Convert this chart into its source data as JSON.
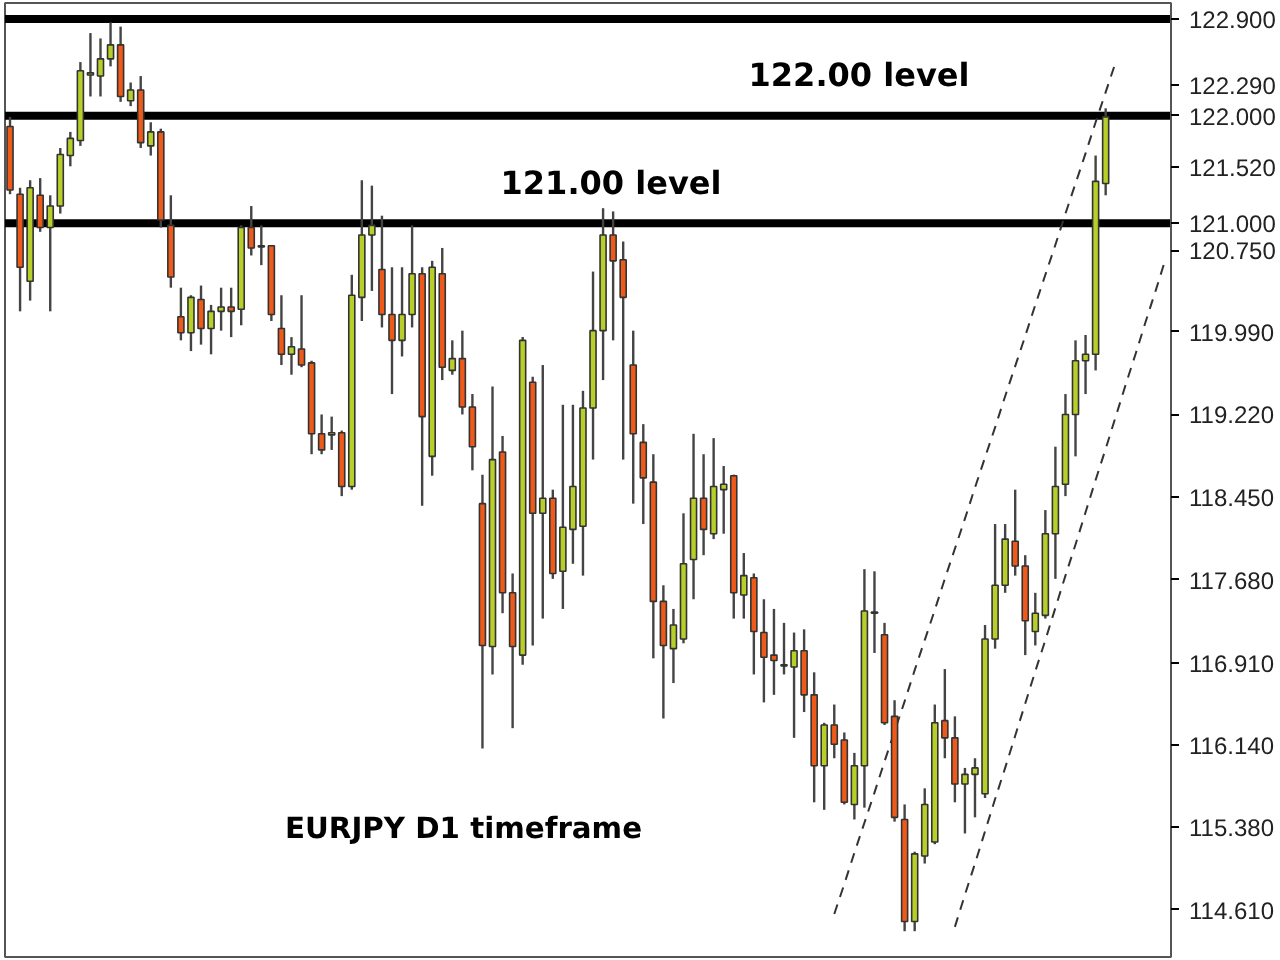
{
  "chart_data": {
    "type": "candlestick",
    "categories": [
      null,
      null,
      null,
      null,
      null,
      null,
      null,
      null,
      null,
      null,
      null,
      null,
      null,
      null,
      null,
      null,
      null,
      null,
      null,
      null,
      null,
      null,
      null,
      null,
      null,
      null,
      null,
      null,
      null,
      null,
      null,
      null,
      null,
      null,
      null,
      null,
      null,
      null,
      null,
      null,
      null,
      null,
      null,
      null,
      null,
      null,
      null,
      null,
      null,
      null,
      null,
      null,
      null,
      null,
      null,
      null,
      null,
      null,
      null,
      null,
      null,
      null,
      null,
      null,
      null,
      null,
      null,
      null,
      null,
      null,
      null,
      null,
      null,
      null,
      null,
      null,
      null,
      null,
      null,
      null,
      null,
      null,
      null,
      null,
      null,
      null,
      null,
      null,
      null,
      null,
      null,
      null,
      null,
      null,
      null,
      null,
      null,
      null,
      null,
      null,
      null,
      null,
      null,
      null,
      null,
      null,
      null,
      null,
      null,
      null,
      null,
      null,
      null,
      null,
      null,
      null
    ],
    "ohlc": [
      [
        121.9,
        121.99,
        121.27,
        121.31
      ],
      [
        121.27,
        121.33,
        120.18,
        120.59
      ],
      [
        120.46,
        121.4,
        120.28,
        121.33
      ],
      [
        121.26,
        121.42,
        120.92,
        120.96
      ],
      [
        120.96,
        121.26,
        120.18,
        121.16
      ],
      [
        121.16,
        121.7,
        121.09,
        121.64
      ],
      [
        121.63,
        121.85,
        121.53,
        121.79
      ],
      [
        121.77,
        122.5,
        121.72,
        122.42
      ],
      [
        122.38,
        122.77,
        122.18,
        122.4
      ],
      [
        122.37,
        122.72,
        122.18,
        122.53
      ],
      [
        122.53,
        122.87,
        122.46,
        122.66
      ],
      [
        122.66,
        122.83,
        122.13,
        122.18
      ],
      [
        122.14,
        122.31,
        122.09,
        122.24
      ],
      [
        122.24,
        122.37,
        121.7,
        121.75
      ],
      [
        121.72,
        121.94,
        121.63,
        121.85
      ],
      [
        121.85,
        121.88,
        120.96,
        121.03
      ],
      [
        120.98,
        121.26,
        120.4,
        120.5
      ],
      [
        120.13,
        120.4,
        119.91,
        119.98
      ],
      [
        119.98,
        120.33,
        119.81,
        120.31
      ],
      [
        120.29,
        120.42,
        119.87,
        120.02
      ],
      [
        120.02,
        120.24,
        119.78,
        120.18
      ],
      [
        120.18,
        120.4,
        120.0,
        120.22
      ],
      [
        120.22,
        120.4,
        119.94,
        120.18
      ],
      [
        120.2,
        120.98,
        120.05,
        120.96
      ],
      [
        120.96,
        121.16,
        120.7,
        120.77
      ],
      [
        120.79,
        120.98,
        120.61,
        120.78
      ],
      [
        120.79,
        120.79,
        120.09,
        120.15
      ],
      [
        120.02,
        120.33,
        119.68,
        119.78
      ],
      [
        119.78,
        119.94,
        119.59,
        119.85
      ],
      [
        119.83,
        120.33,
        119.66,
        119.68
      ],
      [
        119.7,
        119.72,
        118.85,
        119.04
      ],
      [
        119.04,
        119.22,
        118.85,
        118.89
      ],
      [
        119.03,
        119.2,
        118.89,
        119.05
      ],
      [
        119.05,
        119.07,
        118.46,
        118.55
      ],
      [
        118.55,
        120.52,
        118.52,
        120.33
      ],
      [
        120.31,
        121.4,
        120.09,
        120.89
      ],
      [
        120.89,
        121.35,
        120.37,
        120.98
      ],
      [
        120.57,
        121.07,
        120.03,
        120.15
      ],
      [
        120.15,
        120.59,
        119.41,
        119.91
      ],
      [
        119.91,
        120.59,
        119.76,
        120.15
      ],
      [
        120.15,
        120.98,
        120.03,
        120.53
      ],
      [
        120.53,
        120.59,
        118.37,
        119.2
      ],
      [
        118.83,
        120.65,
        118.65,
        120.59
      ],
      [
        120.53,
        120.77,
        119.54,
        119.66
      ],
      [
        119.63,
        119.91,
        119.59,
        119.74
      ],
      [
        119.74,
        120.0,
        119.22,
        119.29
      ],
      [
        119.29,
        119.41,
        118.7,
        118.92
      ],
      [
        118.39,
        118.66,
        116.11,
        117.07
      ],
      [
        117.06,
        119.48,
        116.8,
        118.8
      ],
      [
        118.87,
        119.02,
        117.37,
        117.56
      ],
      [
        117.56,
        117.74,
        116.3,
        117.06
      ],
      [
        116.98,
        119.94,
        116.89,
        119.91
      ],
      [
        119.52,
        119.57,
        117.07,
        118.3
      ],
      [
        118.3,
        119.68,
        117.32,
        118.44
      ],
      [
        118.44,
        118.52,
        117.69,
        117.74
      ],
      [
        117.76,
        119.31,
        117.41,
        118.17
      ],
      [
        118.15,
        119.31,
        117.83,
        118.55
      ],
      [
        118.18,
        119.44,
        117.72,
        119.28
      ],
      [
        119.28,
        120.55,
        118.8,
        120.0
      ],
      [
        120.0,
        121.14,
        119.54,
        120.89
      ],
      [
        120.89,
        121.11,
        119.91,
        120.65
      ],
      [
        120.66,
        120.83,
        118.8,
        120.31
      ],
      [
        119.68,
        120.0,
        118.39,
        119.04
      ],
      [
        118.96,
        119.13,
        118.2,
        118.63
      ],
      [
        118.59,
        118.85,
        116.95,
        117.48
      ],
      [
        117.48,
        117.63,
        116.39,
        117.07
      ],
      [
        117.04,
        117.41,
        116.72,
        117.26
      ],
      [
        117.13,
        118.3,
        117.09,
        117.83
      ],
      [
        117.87,
        119.04,
        117.5,
        118.44
      ],
      [
        118.44,
        118.85,
        117.91,
        118.15
      ],
      [
        118.11,
        119.0,
        118.06,
        118.55
      ],
      [
        118.52,
        118.74,
        118.11,
        118.57
      ],
      [
        118.65,
        118.66,
        117.32,
        117.56
      ],
      [
        117.54,
        117.93,
        117.32,
        117.72
      ],
      [
        117.7,
        117.74,
        116.8,
        117.2
      ],
      [
        117.19,
        117.5,
        116.54,
        116.96
      ],
      [
        116.98,
        117.41,
        116.61,
        116.93
      ],
      [
        116.89,
        117.28,
        116.8,
        116.88
      ],
      [
        116.87,
        117.19,
        116.21,
        117.02
      ],
      [
        117.02,
        117.22,
        116.45,
        116.61
      ],
      [
        116.61,
        116.82,
        115.61,
        115.95
      ],
      [
        115.95,
        116.35,
        115.54,
        116.33
      ],
      [
        116.33,
        116.52,
        116.02,
        116.15
      ],
      [
        116.19,
        116.26,
        115.59,
        115.61
      ],
      [
        115.59,
        116.07,
        115.45,
        115.95
      ],
      [
        115.95,
        117.78,
        115.56,
        117.39
      ],
      [
        117.37,
        117.76,
        117.0,
        117.38
      ],
      [
        117.17,
        117.28,
        116.33,
        116.35
      ],
      [
        116.41,
        116.56,
        115.43,
        115.47
      ],
      [
        115.45,
        115.59,
        114.41,
        114.5
      ],
      [
        114.5,
        115.15,
        114.41,
        115.13
      ],
      [
        115.11,
        115.74,
        115.04,
        115.59
      ],
      [
        115.24,
        116.52,
        115.22,
        116.35
      ],
      [
        116.37,
        116.85,
        116.02,
        116.21
      ],
      [
        116.21,
        116.41,
        115.61,
        115.78
      ],
      [
        115.78,
        115.93,
        115.32,
        115.87
      ],
      [
        115.87,
        116.02,
        115.47,
        115.93
      ],
      [
        115.69,
        117.26,
        115.65,
        117.13
      ],
      [
        117.13,
        118.2,
        117.04,
        117.63
      ],
      [
        117.63,
        118.2,
        117.56,
        118.06
      ],
      [
        118.04,
        118.52,
        117.72,
        117.81
      ],
      [
        117.81,
        117.91,
        116.98,
        117.3
      ],
      [
        117.2,
        117.56,
        117.07,
        117.37
      ],
      [
        117.35,
        118.33,
        117.32,
        118.11
      ],
      [
        118.11,
        118.92,
        117.69,
        118.55
      ],
      [
        118.57,
        119.41,
        118.46,
        119.22
      ],
      [
        119.22,
        119.91,
        118.83,
        119.72
      ],
      [
        119.72,
        119.96,
        119.41,
        119.78
      ],
      [
        119.78,
        121.63,
        119.63,
        121.39
      ],
      [
        121.37,
        122.07,
        121.26,
        121.99
      ],
      null,
      null,
      null,
      null,
      null,
      null
    ],
    "colors": [
      "#ee5a1a",
      "#ee5a1a",
      "#b8cf2a",
      "#ee5a1a",
      "#b8cf2a",
      "#b8cf2a",
      "#b8cf2a",
      "#b8cf2a",
      "#b8cf2a",
      "#b8cf2a",
      "#b8cf2a",
      "#ee5a1a",
      "#b8cf2a",
      "#ee5a1a",
      "#b8cf2a",
      "#ee5a1a",
      "#ee5a1a",
      "#ee5a1a",
      "#b8cf2a",
      "#ee5a1a",
      "#b8cf2a",
      "#b8cf2a",
      "#ee5a1a",
      "#b8cf2a",
      "#ee5a1a",
      "#ee5a1a",
      "#ee5a1a",
      "#ee5a1a",
      "#b8cf2a",
      "#ee5a1a",
      "#ee5a1a",
      "#ee5a1a",
      "#b8cf2a",
      "#ee5a1a",
      "#b8cf2a",
      "#b8cf2a",
      "#b8cf2a",
      "#ee5a1a",
      "#ee5a1a",
      "#b8cf2a",
      "#b8cf2a",
      "#ee5a1a",
      "#b8cf2a",
      "#ee5a1a",
      "#b8cf2a",
      "#ee5a1a",
      "#ee5a1a",
      "#ee5a1a",
      "#b8cf2a",
      "#ee5a1a",
      "#ee5a1a",
      "#b8cf2a",
      "#ee5a1a",
      "#b8cf2a",
      "#ee5a1a",
      "#b8cf2a",
      "#b8cf2a",
      "#b8cf2a",
      "#b8cf2a",
      "#b8cf2a",
      "#ee5a1a",
      "#ee5a1a",
      "#ee5a1a",
      "#ee5a1a",
      "#ee5a1a",
      "#ee5a1a",
      "#b8cf2a",
      "#b8cf2a",
      "#b8cf2a",
      "#ee5a1a",
      "#b8cf2a",
      "#b8cf2a",
      "#ee5a1a",
      "#b8cf2a",
      "#ee5a1a",
      "#ee5a1a",
      "#ee5a1a",
      "#ee5a1a",
      "#b8cf2a",
      "#ee5a1a",
      "#ee5a1a",
      "#b8cf2a",
      "#ee5a1a",
      "#ee5a1a",
      "#b8cf2a",
      "#b8cf2a",
      "#b8cf2a",
      "#ee5a1a",
      "#ee5a1a",
      "#ee5a1a",
      "#b8cf2a",
      "#b8cf2a",
      "#b8cf2a",
      "#ee5a1a",
      "#ee5a1a",
      "#b8cf2a",
      "#b8cf2a",
      "#b8cf2a",
      "#b8cf2a",
      "#b8cf2a",
      "#ee5a1a",
      "#ee5a1a",
      "#b8cf2a",
      "#b8cf2a",
      "#b8cf2a",
      "#b8cf2a",
      "#b8cf2a",
      "#b8cf2a",
      "#b8cf2a",
      "#b8cf2a",
      null,
      null,
      null,
      null,
      null,
      null
    ],
    "series": [
      {
        "type": "line",
        "color": "#333333",
        "line_style": "dashed",
        "values": [
          null,
          null,
          null,
          null,
          null,
          null,
          null,
          null,
          null,
          null,
          null,
          null,
          null,
          null,
          null,
          null,
          null,
          null,
          null,
          null,
          null,
          null,
          null,
          null,
          null,
          null,
          null,
          null,
          null,
          null,
          null,
          null,
          null,
          null,
          null,
          null,
          null,
          null,
          null,
          null,
          null,
          null,
          null,
          null,
          null,
          null,
          null,
          null,
          null,
          null,
          null,
          null,
          null,
          null,
          null,
          null,
          null,
          null,
          null,
          null,
          null,
          null,
          null,
          null,
          null,
          null,
          null,
          null,
          null,
          null,
          null,
          null,
          null,
          null,
          null,
          null,
          null,
          null,
          null,
          null,
          null,
          null,
          114.57,
          114.85,
          115.14,
          115.42,
          115.7,
          115.99,
          116.27,
          116.55,
          116.84,
          117.12,
          117.4,
          117.69,
          117.97,
          118.25,
          118.54,
          118.82,
          119.1,
          119.39,
          119.67,
          119.95,
          120.24,
          120.52,
          120.8,
          121.09,
          121.37,
          121.65,
          121.94,
          122.22,
          122.5,
          null,
          null,
          null,
          null,
          null
        ]
      },
      {
        "type": "line",
        "color": "#333333",
        "line_style": "dashed",
        "values": [
          null,
          null,
          null,
          null,
          null,
          null,
          null,
          null,
          null,
          null,
          null,
          null,
          null,
          null,
          null,
          null,
          null,
          null,
          null,
          null,
          null,
          null,
          null,
          null,
          null,
          null,
          null,
          null,
          null,
          null,
          null,
          null,
          null,
          null,
          null,
          null,
          null,
          null,
          null,
          null,
          null,
          null,
          null,
          null,
          null,
          null,
          null,
          null,
          null,
          null,
          null,
          null,
          null,
          null,
          null,
          null,
          null,
          null,
          null,
          null,
          null,
          null,
          null,
          null,
          null,
          null,
          null,
          null,
          null,
          null,
          null,
          null,
          null,
          null,
          null,
          null,
          null,
          null,
          null,
          null,
          null,
          null,
          null,
          null,
          null,
          null,
          null,
          null,
          null,
          null,
          null,
          null,
          null,
          null,
          114.45,
          114.75,
          115.04,
          115.34,
          115.64,
          115.93,
          116.23,
          116.53,
          116.83,
          117.12,
          117.42,
          117.72,
          118.01,
          118.31,
          118.61,
          118.9,
          119.2,
          119.5,
          119.79,
          120.09,
          120.38,
          120.68
        ]
      }
    ],
    "ylim": [
      114.17,
      123.05
    ],
    "yticks": [
      {
        "value": 122.29,
        "label": "122.290"
      },
      {
        "value": 121.52,
        "label": "121.520"
      },
      {
        "value": 120.75,
        "label": "120.750"
      },
      {
        "value": 119.99,
        "label": "119.990"
      },
      {
        "value": 119.22,
        "label": "119.220"
      },
      {
        "value": 118.45,
        "label": "118.450"
      },
      {
        "value": 117.68,
        "label": "117.680"
      },
      {
        "value": 116.91,
        "label": "116.910"
      },
      {
        "value": 116.14,
        "label": "116.140"
      },
      {
        "value": 115.38,
        "label": "115.380"
      },
      {
        "value": 114.61,
        "label": "114.610"
      }
    ],
    "tick_labels": "y",
    "grid": false,
    "ref_lines": [
      {
        "axis": "y",
        "value": 122.9,
        "label": "122.900",
        "color": "#000000"
      },
      {
        "axis": "y",
        "value": 122.0,
        "label": "122.000",
        "color": "#000000"
      },
      {
        "axis": "y",
        "value": 121.0,
        "label": "121.000",
        "color": "#000000"
      }
    ],
    "annotations": [
      "122.00 level",
      "121.00 level",
      "EURJPY D1 timeframe"
    ]
  }
}
